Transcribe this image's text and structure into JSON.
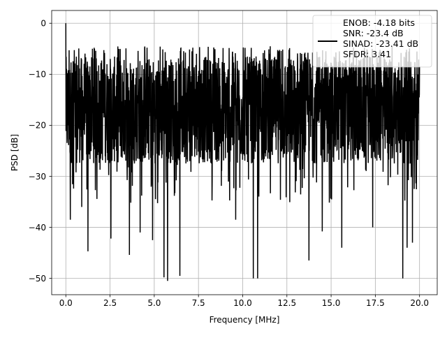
{
  "chart_data": {
    "type": "line",
    "title": "",
    "xlabel": "Frequency [MHz]",
    "ylabel": "PSD [dB]",
    "xlim": [
      -0.8,
      21.0
    ],
    "ylim": [
      -53.2,
      2.5
    ],
    "x_ticks": [
      "0.0",
      "2.5",
      "5.0",
      "7.5",
      "10.0",
      "12.5",
      "15.0",
      "17.5",
      "20.0"
    ],
    "y_ticks": [
      "0",
      "−10",
      "−20",
      "−30",
      "−40",
      "−50"
    ],
    "grid": true,
    "legend_position": "top-right",
    "series": [
      {
        "name": "",
        "color": "#000000",
        "x_range": [
          0.0,
          20.0
        ],
        "points_estimated": 2048,
        "peak": {
          "x": 0.0,
          "y": 0.0
        },
        "baseline_mean_db": -17,
        "upper_envelope_db": -6,
        "lower_envelope_db": -26,
        "notable_dips": [
          {
            "x": 0.25,
            "y": -38.5
          },
          {
            "x": 0.9,
            "y": -36.0
          },
          {
            "x": 1.25,
            "y": -44.7
          },
          {
            "x": 2.55,
            "y": -42.2
          },
          {
            "x": 3.6,
            "y": -45.4
          },
          {
            "x": 4.2,
            "y": -41.0
          },
          {
            "x": 4.9,
            "y": -42.5
          },
          {
            "x": 5.55,
            "y": -49.8
          },
          {
            "x": 5.75,
            "y": -50.5
          },
          {
            "x": 6.45,
            "y": -49.5
          },
          {
            "x": 9.6,
            "y": -38.5
          },
          {
            "x": 10.6,
            "y": -50.0
          },
          {
            "x": 10.85,
            "y": -50.0
          },
          {
            "x": 13.75,
            "y": -46.5
          },
          {
            "x": 14.5,
            "y": -40.8
          },
          {
            "x": 15.6,
            "y": -44.0
          },
          {
            "x": 17.35,
            "y": -40.0
          },
          {
            "x": 19.05,
            "y": -50.0
          },
          {
            "x": 19.3,
            "y": -44.0
          },
          {
            "x": 19.6,
            "y": -43.0
          }
        ]
      }
    ],
    "legend_entries": [
      "ENOB: -4.18 bits",
      "SNR: -23.4 dB",
      "SINAD: -23.41 dB",
      "SFDR: 3.41"
    ]
  }
}
